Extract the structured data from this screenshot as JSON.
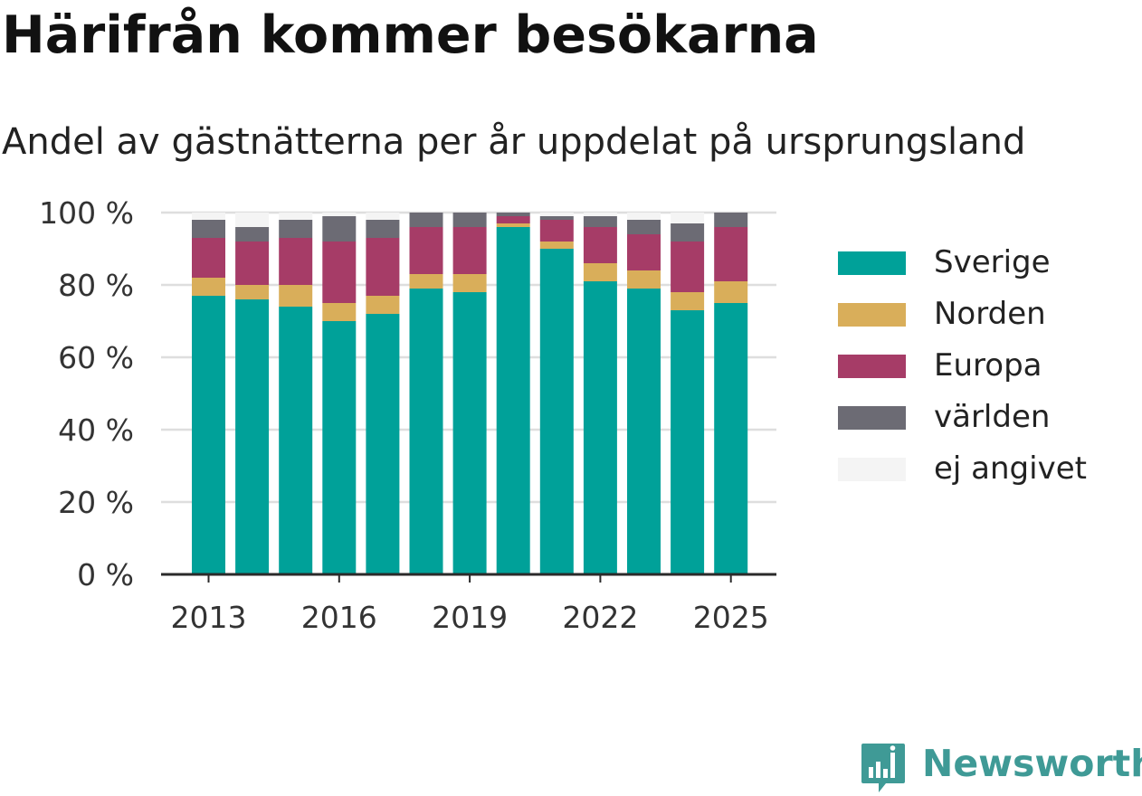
{
  "title": "Härifrån kommer besökarna",
  "subtitle": "Andel av gästnätterna per år uppdelat på ursprungsland",
  "brand": "Newsworthy",
  "chart_data": {
    "type": "bar",
    "stacked": true,
    "categories": [
      "2013",
      "2014",
      "2015",
      "2016",
      "2017",
      "2018",
      "2019",
      "2020",
      "2021",
      "2022",
      "2023",
      "2024",
      "2025"
    ],
    "x_tick_labels": [
      "2013",
      "2016",
      "2019",
      "2022",
      "2025"
    ],
    "y_tick_labels": [
      "0 %",
      "20 %",
      "40 %",
      "60 %",
      "80 %",
      "100 %"
    ],
    "ylim": [
      0,
      100
    ],
    "grid": true,
    "legend_position": "right",
    "series": [
      {
        "name": "Sverige",
        "color": "#00a199",
        "values": [
          77,
          76,
          74,
          70,
          72,
          79,
          78,
          96,
          90,
          81,
          79,
          73,
          75
        ]
      },
      {
        "name": "Norden",
        "color": "#d9ae5a",
        "values": [
          5,
          4,
          6,
          5,
          5,
          4,
          5,
          1,
          2,
          5,
          5,
          5,
          6
        ]
      },
      {
        "name": "Europa",
        "color": "#a63c67",
        "values": [
          11,
          12,
          13,
          17,
          16,
          13,
          13,
          2,
          6,
          10,
          10,
          14,
          15
        ]
      },
      {
        "name": "världen",
        "color": "#6c6b74",
        "values": [
          5,
          4,
          5,
          7,
          5,
          4,
          4,
          1,
          1,
          3,
          4,
          5,
          4
        ]
      },
      {
        "name": "ej angivet",
        "color": "#f4f4f4",
        "values": [
          2,
          4,
          2,
          1,
          2,
          0,
          0,
          0,
          1,
          1,
          2,
          3,
          0
        ]
      }
    ]
  },
  "colors": {
    "axis": "#2a2a2a",
    "grid": "#dedede",
    "text": "#333333"
  }
}
